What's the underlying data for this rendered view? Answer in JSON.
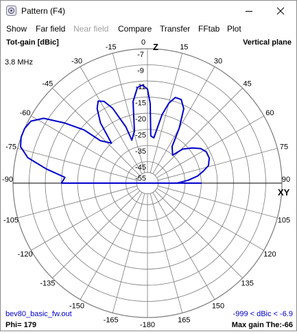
{
  "window": {
    "title": "Pattern   (F4)",
    "app_icon": "antenna-app-icon",
    "controls": [
      "minimize-icon",
      "maximize-icon",
      "close-icon"
    ]
  },
  "menu": {
    "items": [
      {
        "label": "Show",
        "enabled": true
      },
      {
        "label": "Far field",
        "enabled": true
      },
      {
        "label": "Near field",
        "enabled": false
      },
      {
        "label": "Compare",
        "enabled": true
      },
      {
        "label": "Transfer",
        "enabled": true
      },
      {
        "label": "FFtab",
        "enabled": true
      },
      {
        "label": "Plot",
        "enabled": true
      }
    ]
  },
  "plot": {
    "gain_type": "Tot-gain [dBic]",
    "plane": "Vertical plane",
    "frequency": "3.8 MHz",
    "z_axis": "Z",
    "xy_axis": "XY",
    "source_file": "bev80_basic_fw.out",
    "range_text": "-999 < dBic < -6.9",
    "phi_text": "Phi= 179",
    "max_gain_text": "Max gain The:-66",
    "colors": {
      "pattern": "#0000cc",
      "grid": "#7a7a7a",
      "blue_text": "#0000cc"
    },
    "angle_labels": [
      {
        "angle": 0,
        "text": "0"
      },
      {
        "angle": 15,
        "text": "15"
      },
      {
        "angle": 30,
        "text": "30"
      },
      {
        "angle": 45,
        "text": "45"
      },
      {
        "angle": 60,
        "text": "60"
      },
      {
        "angle": 75,
        "text": "75"
      },
      {
        "angle": 90,
        "text": "90"
      },
      {
        "angle": 105,
        "text": "105"
      },
      {
        "angle": 120,
        "text": "120"
      },
      {
        "angle": 135,
        "text": "135"
      },
      {
        "angle": 150,
        "text": "150"
      },
      {
        "angle": 165,
        "text": "165"
      },
      {
        "angle": 180,
        "text": "-180"
      },
      {
        "angle": -165,
        "text": "-165"
      },
      {
        "angle": -150,
        "text": "-150"
      },
      {
        "angle": -135,
        "text": "-135"
      },
      {
        "angle": -120,
        "text": "-120"
      },
      {
        "angle": -105,
        "text": "-105"
      },
      {
        "angle": -90,
        "text": "-90"
      },
      {
        "angle": -75,
        "text": "-75"
      },
      {
        "angle": -60,
        "text": "-60"
      },
      {
        "angle": -45,
        "text": "-45"
      },
      {
        "angle": -30,
        "text": "-30"
      },
      {
        "angle": -15,
        "text": "-15"
      }
    ],
    "ring_labels": [
      "-7",
      "-9",
      "-11",
      "-15",
      "-20",
      "-25",
      "-35",
      "-45",
      "-55"
    ]
  },
  "chart_data": {
    "type": "polar",
    "angle_unit": "degrees from zenith",
    "scale_dbic": [
      -7,
      -9,
      -11,
      -15,
      -20,
      -25,
      -35,
      -45,
      -55
    ],
    "series": [
      {
        "points": [
          [
            -86,
            -16
          ],
          [
            -82,
            -11
          ],
          [
            -78,
            -8.5
          ],
          [
            -74,
            -7.3
          ],
          [
            -70,
            -6.9
          ],
          [
            -66,
            -6.9
          ],
          [
            -62,
            -7.3
          ],
          [
            -58,
            -8.5
          ],
          [
            -54,
            -11
          ],
          [
            -50,
            -16
          ],
          [
            -48,
            -22
          ],
          [
            -42,
            -25
          ],
          [
            -38,
            -18
          ],
          [
            -34,
            -14
          ],
          [
            -31,
            -12.6
          ],
          [
            -28,
            -13.4
          ],
          [
            -25,
            -16
          ],
          [
            -21,
            -23
          ],
          [
            -20,
            -30
          ],
          [
            -14,
            -25
          ],
          [
            -10,
            -16
          ],
          [
            -6,
            -12.5
          ],
          [
            -3,
            -12
          ],
          [
            0,
            -13
          ],
          [
            2,
            -17
          ],
          [
            4,
            -29
          ],
          [
            8,
            -30
          ],
          [
            12,
            -20
          ],
          [
            15,
            -16
          ],
          [
            18,
            -14
          ],
          [
            22,
            -14
          ],
          [
            26,
            -16
          ],
          [
            30,
            -22
          ],
          [
            34,
            -31
          ],
          [
            42,
            -35
          ],
          [
            46,
            -28
          ],
          [
            52,
            -24
          ],
          [
            57,
            -22
          ],
          [
            62,
            -21
          ],
          [
            68,
            -21
          ],
          [
            74,
            -22
          ],
          [
            78,
            -24
          ],
          [
            82,
            -27
          ],
          [
            86,
            -33
          ],
          [
            90,
            -40
          ]
        ]
      }
    ]
  }
}
